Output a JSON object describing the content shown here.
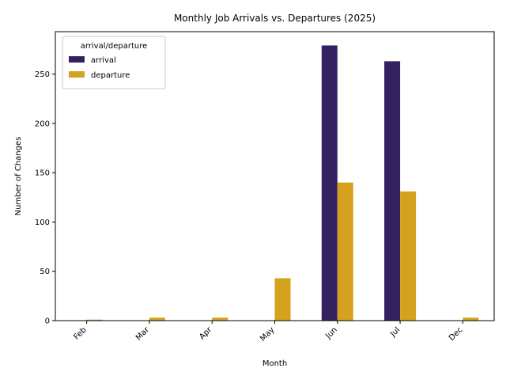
{
  "chart_data": {
    "type": "bar",
    "title": "Monthly Job Arrivals vs. Departures (2025)",
    "xlabel": "Month",
    "ylabel": "Number of Changes",
    "categories": [
      "Feb",
      "Mar",
      "Apr",
      "May",
      "Jun",
      "Jul",
      "Dec"
    ],
    "series": [
      {
        "name": "arrival",
        "color": "#35215f",
        "values": [
          0,
          0,
          0,
          0,
          279,
          263,
          0
        ]
      },
      {
        "name": "departure",
        "color": "#d4a21f",
        "values": [
          1,
          3,
          3,
          43,
          140,
          131,
          3
        ]
      }
    ],
    "ylim": [
      0,
      293
    ],
    "yticks": [
      0,
      50,
      100,
      150,
      200,
      250
    ],
    "grid": false,
    "legend": {
      "title": "arrival/departure",
      "placement": "top-left"
    }
  }
}
